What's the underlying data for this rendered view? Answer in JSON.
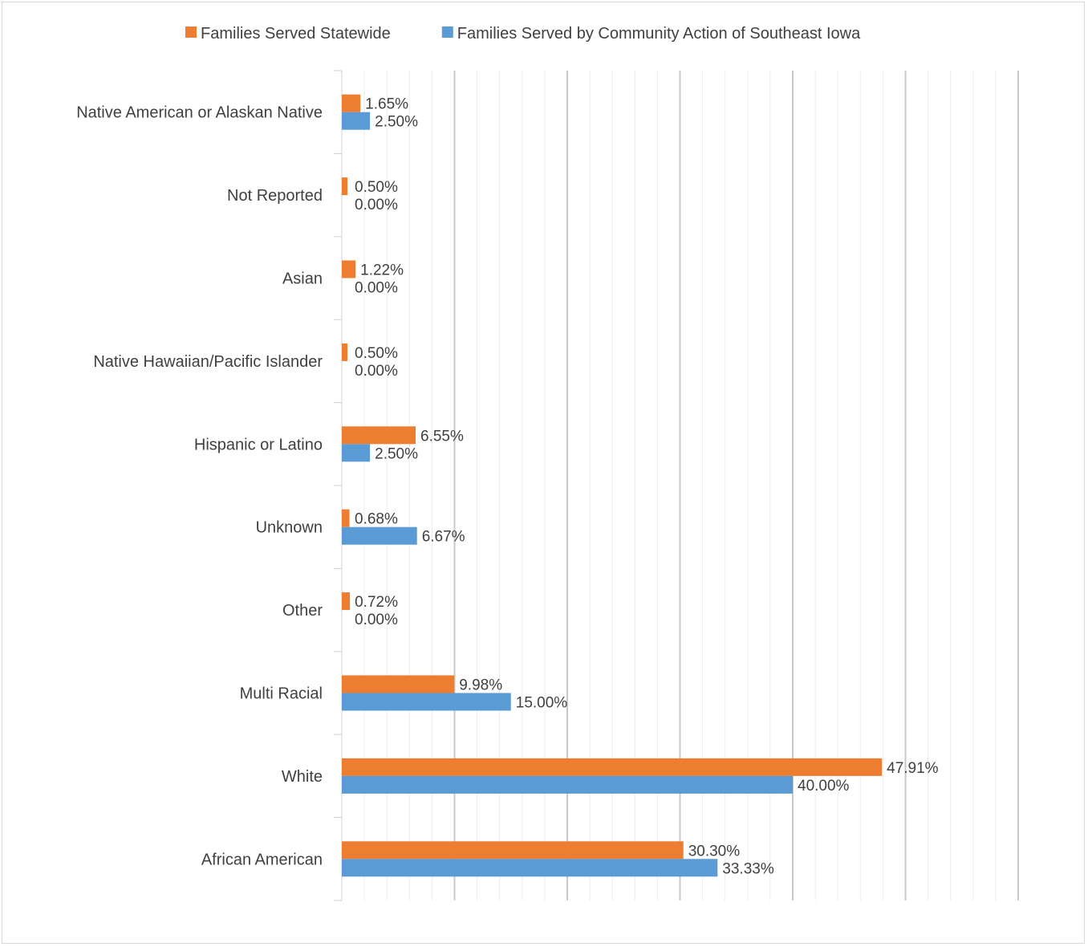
{
  "chart_data": {
    "type": "bar",
    "orientation": "horizontal",
    "categories": [
      "Native American or Alaskan Native",
      "Not Reported",
      "Asian",
      "Native Hawaiian/Pacific Islander",
      "Hispanic or Latino",
      "Unknown",
      "Other",
      "Multi Racial",
      "White",
      "African American"
    ],
    "series": [
      {
        "name": "Families Served Statewide",
        "color": "#ED7D31",
        "values": [
          1.65,
          0.5,
          1.22,
          0.5,
          6.55,
          0.68,
          0.72,
          9.98,
          47.91,
          30.3
        ],
        "labels": [
          "1.65%",
          "0.50%",
          "1.22%",
          "0.50%",
          "6.55%",
          "0.68%",
          "0.72%",
          "9.98%",
          "47.91%",
          "30.30%"
        ]
      },
      {
        "name": "Families Served by Community Action of Southeast Iowa",
        "color": "#5B9BD5",
        "values": [
          2.5,
          0.0,
          0.0,
          0.0,
          2.5,
          6.67,
          0.0,
          15.0,
          40.0,
          33.33
        ],
        "labels": [
          "2.50%",
          "0.00%",
          "0.00%",
          "0.00%",
          "2.50%",
          "6.67%",
          "0.00%",
          "15.00%",
          "40.00%",
          "33.33%"
        ]
      }
    ],
    "xlim": [
      0,
      60
    ],
    "grid": true,
    "legend": "top"
  }
}
